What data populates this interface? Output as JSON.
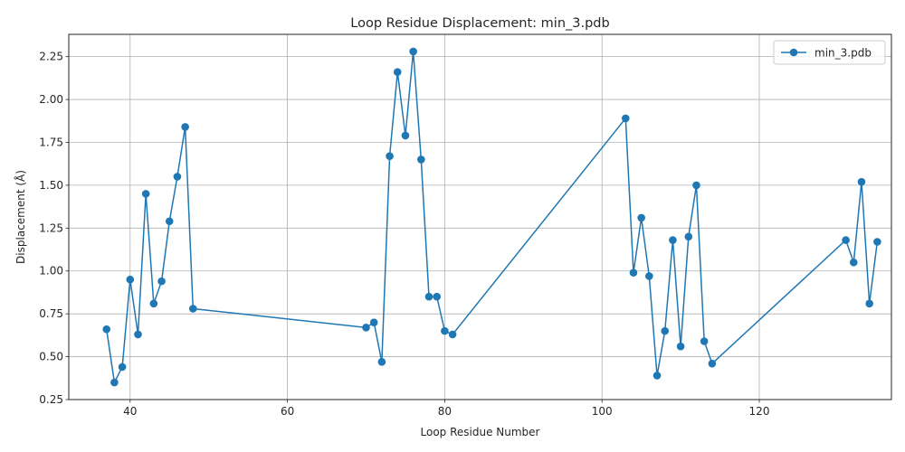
{
  "chart_data": {
    "type": "line",
    "title": "Loop Residue Displacement: min_3.pdb",
    "xlabel": "Loop Residue Number",
    "ylabel": "Displacement (Å)",
    "xlim": [
      32.2,
      136.8
    ],
    "ylim": [
      0.25,
      2.38
    ],
    "xticks": [
      40,
      60,
      80,
      100,
      120
    ],
    "yticks": [
      0.25,
      0.5,
      0.75,
      1.0,
      1.25,
      1.5,
      1.75,
      2.0,
      2.25
    ],
    "ytick_labels": [
      "0.25",
      "0.50",
      "0.75",
      "1.00",
      "1.25",
      "1.50",
      "1.75",
      "2.00",
      "2.25"
    ],
    "grid": true,
    "legend_position": "top-right",
    "color": "#1f77b4",
    "series": [
      {
        "name": "min_3.pdb",
        "x": [
          37,
          38,
          39,
          40,
          41,
          42,
          43,
          44,
          45,
          46,
          47,
          48,
          70,
          71,
          72,
          73,
          74,
          75,
          76,
          77,
          78,
          79,
          80,
          81,
          103,
          104,
          105,
          106,
          107,
          108,
          109,
          110,
          111,
          112,
          113,
          114,
          131,
          132,
          133,
          134,
          135
        ],
        "y": [
          0.66,
          0.35,
          0.44,
          0.95,
          0.63,
          1.45,
          0.81,
          0.94,
          1.29,
          1.55,
          1.84,
          0.78,
          0.67,
          0.7,
          0.47,
          1.67,
          2.16,
          1.79,
          2.28,
          1.65,
          0.85,
          0.85,
          0.65,
          0.63,
          1.89,
          0.99,
          1.31,
          0.97,
          0.39,
          0.65,
          1.18,
          0.56,
          1.2,
          1.5,
          0.59,
          0.46,
          1.18,
          1.05,
          1.52,
          0.81,
          1.17
        ]
      }
    ]
  }
}
